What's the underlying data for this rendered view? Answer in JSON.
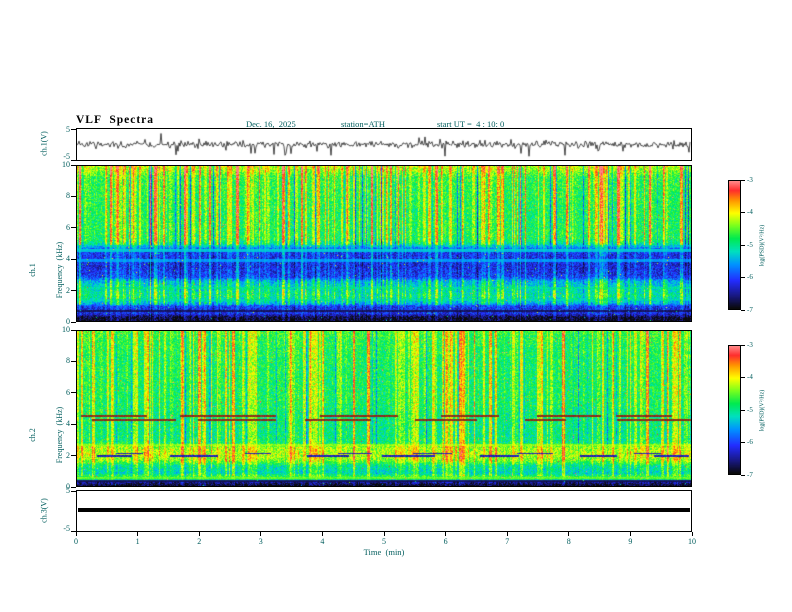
{
  "colors": {
    "text": "#015d5d",
    "frame": "#000000",
    "background": "#ffffff"
  },
  "header": {
    "title": "VLF  Spectra",
    "date": "Dec. 16,  2025",
    "station": "station=ATH",
    "start_ut": "start UT =  4 : 10: 0"
  },
  "axes": {
    "x_label": "Time  (min)",
    "x_ticks": [
      "0",
      "1",
      "2",
      "3",
      "4",
      "5",
      "6",
      "7",
      "8",
      "9",
      "10"
    ],
    "waveform_ylabel": "ch.1(V)",
    "waveform_yticks": [
      "5",
      "-5"
    ],
    "spec1_ylabel_line1": "ch.1",
    "spec1_ylabel_line2": "Frequency  (kHz)",
    "spec2_ylabel_line1": "ch.2",
    "spec2_ylabel_line2": "Frequency  (kHz)",
    "spec_yticks": [
      "10",
      "8",
      "6",
      "4",
      "2",
      "0"
    ],
    "ch3_ylabel": "ch.3(V)",
    "ch3_yticks": [
      "5",
      "-5"
    ]
  },
  "colorbar": {
    "label": "log(PSD)(V²/Hz)",
    "ticks": [
      "-3",
      "-4",
      "-5",
      "-6",
      "-7"
    ]
  },
  "chart_data": [
    {
      "type": "line",
      "name": "ch1_waveform",
      "ylabel": "ch.1(V)",
      "xlim_min": [
        0,
        10
      ],
      "ylim_volts": [
        -5,
        5
      ],
      "summary": "Continuous noisy voltage trace centered near 0 V, typical amplitude ±1.5 V, with dense impulsive spikes, many reaching -4 to -5 V"
    },
    {
      "type": "heatmap",
      "name": "ch1_spectrogram",
      "ylabel": "ch.1 Frequency (kHz)",
      "xlim_min": [
        0,
        10
      ],
      "ylim_khz": [
        0,
        10
      ],
      "value_label": "log(PSD)(V²/Hz)",
      "value_range": [
        -7,
        -3
      ],
      "freq_profile": [
        [
          0,
          -7.0
        ],
        [
          0.2,
          -6.9
        ],
        [
          0.45,
          -6.25
        ],
        [
          0.9,
          -6.15
        ],
        [
          1.15,
          -5.5
        ],
        [
          1.6,
          -5.1
        ],
        [
          2.0,
          -5.25
        ],
        [
          2.5,
          -5.5
        ],
        [
          2.85,
          -6.15
        ],
        [
          3.6,
          -6.3
        ],
        [
          4.55,
          -6.15
        ],
        [
          4.95,
          -5.2
        ],
        [
          5.3,
          -4.85
        ],
        [
          7.0,
          -4.85
        ],
        [
          9.3,
          -4.75
        ],
        [
          9.75,
          -4.4
        ],
        [
          10,
          -4.3
        ]
      ],
      "lines": [
        {
          "f": 4.55,
          "psd": -5.2,
          "mix": 0.8
        },
        {
          "f": 3.9,
          "psd": -5.35,
          "mix": 0.7
        },
        {
          "f": 2.12,
          "psd": -4.9,
          "mix": 0.45
        },
        {
          "f": 1.33,
          "psd": -5.0,
          "mix": 0.4
        },
        {
          "f": 0.62,
          "psd": -6.9,
          "mix": 0.75
        }
      ],
      "dash_bands": [],
      "features": [
        "vertical yellow enhancement streaks at many times",
        "suppressed dark-blue band ~2.8-4.6 kHz",
        "dark band below 1 kHz",
        "green background -4.8 above 5 kHz",
        "orange/red flecks near 10 kHz"
      ]
    },
    {
      "type": "heatmap",
      "name": "ch2_spectrogram",
      "ylabel": "ch.2 Frequency (kHz)",
      "xlim_min": [
        0,
        10
      ],
      "ylim_khz": [
        0,
        10
      ],
      "value_label": "log(PSD)(V²/Hz)",
      "value_range": [
        -7,
        -3
      ],
      "freq_profile": [
        [
          0,
          -7.0
        ],
        [
          0.2,
          -6.6
        ],
        [
          0.35,
          -5.1
        ],
        [
          0.55,
          -4.65
        ],
        [
          0.8,
          -5.3
        ],
        [
          1.3,
          -5.1
        ],
        [
          1.6,
          -4.5
        ],
        [
          2.0,
          -4.3
        ],
        [
          2.5,
          -4.4
        ],
        [
          2.8,
          -5.0
        ],
        [
          3.5,
          -5.05
        ],
        [
          4.5,
          -5.0
        ],
        [
          5.5,
          -4.9
        ],
        [
          8.0,
          -4.9
        ],
        [
          9.5,
          -4.8
        ],
        [
          10,
          -4.7
        ]
      ],
      "lines": [
        {
          "f": 2.62,
          "psd": -4.1,
          "mix": 0.5
        },
        {
          "f": 0.5,
          "psd": -4.3,
          "mix": 0.6
        },
        {
          "f": 0.28,
          "psd": -6.9,
          "mix": 0.85
        }
      ],
      "dash_bands": [
        {
          "f0": 1.82,
          "f1": 1.96,
          "psd": -6.4,
          "on_len": 26,
          "on_jit": 30,
          "off_len": 30,
          "off_jit": 60
        },
        {
          "f0": 2.02,
          "f1": 2.12,
          "psd": -6.4,
          "on_len": 22,
          "on_jit": 26,
          "off_len": 36,
          "off_jit": 70
        },
        {
          "f0": 4.18,
          "f1": 4.3,
          "psd": -3.3,
          "shade": 0.55,
          "on_len": 40,
          "on_jit": 50,
          "off_len": 18,
          "off_jit": 40
        },
        {
          "f0": 4.46,
          "f1": 4.58,
          "psd": -3.3,
          "shade": 0.55,
          "on_len": 45,
          "on_jit": 60,
          "off_len": 15,
          "off_jit": 30
        }
      ],
      "features": [
        "bright yellow-green band 1.5-2.6 kHz",
        "dark segmented dashes near 1.9-2.1 kHz",
        "dark red broken lines near 4.2 and 4.5 kHz",
        "yellow stripe near 0.5 kHz",
        "black band below 0.25 kHz",
        "vertical yellow streaks"
      ]
    },
    {
      "type": "line",
      "name": "ch3_waveform",
      "ylabel": "ch.3(V)",
      "xlim_min": [
        0,
        10
      ],
      "ylim_volts": [
        -5,
        5
      ],
      "summary": "Flat thick black line at 0 V across the whole interval (no signal)"
    }
  ]
}
